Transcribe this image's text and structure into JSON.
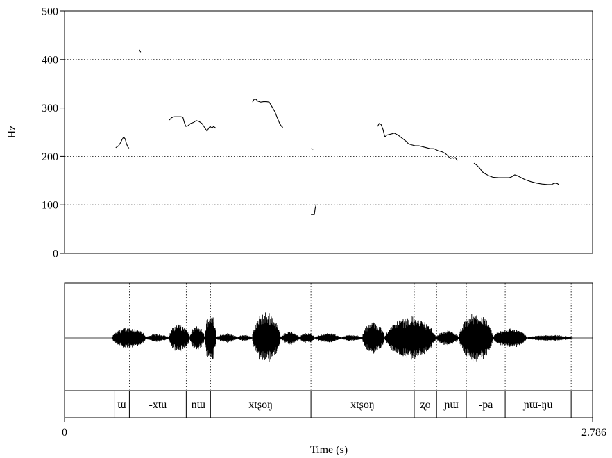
{
  "chart_data": {
    "type": "line",
    "ylabel": "Hz",
    "xlabel": "Time (s)",
    "xlim": [
      0,
      2.786
    ],
    "ylim": [
      0,
      500
    ],
    "x_tick_labels": [
      "0",
      "2.786"
    ],
    "y_tick_labels": [
      "0",
      "100",
      "200",
      "300",
      "400",
      "500"
    ],
    "grid": "horizontal dotted at 100, 200, 300, 400",
    "series_color": "#000000",
    "pitch_segments": [
      [
        [
          0.27,
          218
        ],
        [
          0.285,
          222
        ],
        [
          0.295,
          228
        ],
        [
          0.305,
          236
        ],
        [
          0.312,
          240
        ],
        [
          0.32,
          236
        ],
        [
          0.327,
          226
        ],
        [
          0.335,
          219
        ],
        [
          0.34,
          217
        ]
      ],
      [
        [
          0.395,
          420
        ],
        [
          0.402,
          415
        ]
      ],
      [
        [
          0.553,
          275
        ],
        [
          0.565,
          280
        ],
        [
          0.58,
          282
        ],
        [
          0.6,
          282
        ],
        [
          0.615,
          282
        ],
        [
          0.625,
          280
        ],
        [
          0.632,
          270
        ],
        [
          0.64,
          262
        ],
        [
          0.65,
          263
        ],
        [
          0.665,
          268
        ],
        [
          0.68,
          270
        ],
        [
          0.695,
          274
        ],
        [
          0.71,
          272
        ],
        [
          0.725,
          268
        ],
        [
          0.735,
          262
        ],
        [
          0.745,
          256
        ],
        [
          0.752,
          252
        ],
        [
          0.76,
          258
        ],
        [
          0.768,
          262
        ],
        [
          0.778,
          258
        ],
        [
          0.786,
          262
        ],
        [
          0.793,
          260
        ],
        [
          0.8,
          258
        ]
      ],
      [
        [
          0.992,
          312
        ],
        [
          1.0,
          318
        ],
        [
          1.01,
          318
        ],
        [
          1.02,
          314
        ],
        [
          1.035,
          312
        ],
        [
          1.05,
          313
        ],
        [
          1.065,
          313
        ],
        [
          1.08,
          312
        ],
        [
          1.095,
          302
        ],
        [
          1.11,
          292
        ],
        [
          1.122,
          280
        ],
        [
          1.135,
          268
        ],
        [
          1.145,
          262
        ],
        [
          1.152,
          260
        ]
      ],
      [
        [
          1.3,
          216
        ],
        [
          1.312,
          215
        ]
      ],
      [
        [
          1.3,
          80
        ],
        [
          1.318,
          80
        ],
        [
          1.322,
          92
        ],
        [
          1.328,
          101
        ]
      ],
      [
        [
          1.652,
          262
        ],
        [
          1.66,
          268
        ],
        [
          1.67,
          266
        ],
        [
          1.68,
          256
        ],
        [
          1.69,
          240
        ],
        [
          1.7,
          244
        ],
        [
          1.72,
          246
        ],
        [
          1.74,
          248
        ],
        [
          1.76,
          244
        ],
        [
          1.78,
          238
        ],
        [
          1.8,
          232
        ],
        [
          1.815,
          226
        ],
        [
          1.83,
          224
        ],
        [
          1.85,
          222
        ],
        [
          1.87,
          222
        ],
        [
          1.89,
          220
        ],
        [
          1.91,
          218
        ],
        [
          1.93,
          216
        ],
        [
          1.95,
          216
        ],
        [
          1.97,
          212
        ],
        [
          1.99,
          210
        ],
        [
          2.0,
          208
        ],
        [
          2.01,
          206
        ],
        [
          2.02,
          202
        ],
        [
          2.03,
          198
        ],
        [
          2.038,
          196
        ],
        [
          2.046,
          198
        ],
        [
          2.054,
          196
        ],
        [
          2.062,
          198
        ],
        [
          2.068,
          194
        ],
        [
          2.074,
          192
        ]
      ],
      [
        [
          2.16,
          186
        ],
        [
          2.175,
          182
        ],
        [
          2.19,
          176
        ],
        [
          2.205,
          168
        ],
        [
          2.22,
          164
        ],
        [
          2.24,
          160
        ],
        [
          2.26,
          157
        ],
        [
          2.29,
          156
        ],
        [
          2.32,
          156
        ],
        [
          2.345,
          156
        ],
        [
          2.36,
          158
        ],
        [
          2.375,
          162
        ],
        [
          2.39,
          160
        ],
        [
          2.41,
          156
        ],
        [
          2.43,
          152
        ],
        [
          2.46,
          148
        ],
        [
          2.49,
          145
        ],
        [
          2.52,
          143
        ],
        [
          2.55,
          142
        ],
        [
          2.57,
          142
        ],
        [
          2.58,
          144
        ],
        [
          2.59,
          145
        ],
        [
          2.6,
          144
        ],
        [
          2.607,
          142
        ]
      ]
    ],
    "waveform_bursts": [
      {
        "start": 0.25,
        "end": 0.43,
        "amp": 0.42
      },
      {
        "start": 0.43,
        "end": 0.55,
        "amp": 0.15
      },
      {
        "start": 0.55,
        "end": 0.66,
        "amp": 0.55
      },
      {
        "start": 0.66,
        "end": 0.74,
        "amp": 0.45
      },
      {
        "start": 0.74,
        "end": 0.8,
        "amp": 1.0
      },
      {
        "start": 0.8,
        "end": 0.91,
        "amp": 0.18
      },
      {
        "start": 0.91,
        "end": 0.99,
        "amp": 0.12
      },
      {
        "start": 0.99,
        "end": 1.14,
        "amp": 1.0
      },
      {
        "start": 1.14,
        "end": 1.24,
        "amp": 0.25
      },
      {
        "start": 1.24,
        "end": 1.32,
        "amp": 0.2
      },
      {
        "start": 1.32,
        "end": 1.46,
        "amp": 0.18
      },
      {
        "start": 1.46,
        "end": 1.57,
        "amp": 0.12
      },
      {
        "start": 1.57,
        "end": 1.69,
        "amp": 0.62
      },
      {
        "start": 1.69,
        "end": 1.96,
        "amp": 0.82
      },
      {
        "start": 1.96,
        "end": 2.08,
        "amp": 0.28
      },
      {
        "start": 2.08,
        "end": 2.26,
        "amp": 0.95
      },
      {
        "start": 2.26,
        "end": 2.44,
        "amp": 0.38
      },
      {
        "start": 2.44,
        "end": 2.68,
        "amp": 0.12
      }
    ],
    "segment_boundaries": [
      0.262,
      0.342,
      0.642,
      0.77,
      1.3,
      1.845,
      1.963,
      2.12,
      2.325,
      2.673
    ],
    "segments": [
      {
        "start": 0.262,
        "end": 0.342,
        "label": "ɯ"
      },
      {
        "start": 0.342,
        "end": 0.642,
        "label": "-xtu"
      },
      {
        "start": 0.642,
        "end": 0.77,
        "label": "nɯ"
      },
      {
        "start": 0.77,
        "end": 1.3,
        "label": "xtʂoŋ"
      },
      {
        "start": 1.3,
        "end": 1.845,
        "label": "xtʂoŋ"
      },
      {
        "start": 1.845,
        "end": 1.963,
        "label": "ʐo"
      },
      {
        "start": 1.963,
        "end": 2.12,
        "label": "ɲɯ"
      },
      {
        "start": 2.12,
        "end": 2.325,
        "label": "-pa"
      },
      {
        "start": 2.325,
        "end": 2.673,
        "label": "ɲɯ-ŋu"
      }
    ]
  }
}
